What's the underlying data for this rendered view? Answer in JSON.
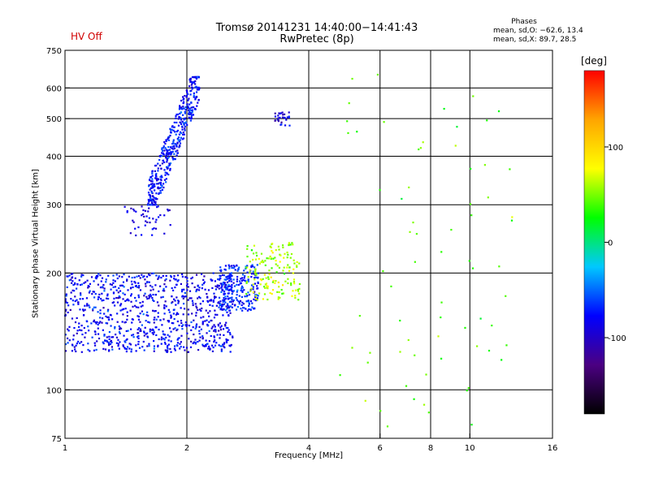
{
  "status_text": "HV Off",
  "chart_data": {
    "type": "scatter",
    "title": "Tromsø 20141231 14:40:00−14:41:43",
    "subtitle": "RwPretec (8p)",
    "xlabel": "Frequency [MHz]",
    "ylabel": "Stationary phase Virtual Height [km]",
    "x_scale": "log",
    "y_scale": "log",
    "xlim": [
      1,
      16
    ],
    "ylim": [
      75,
      750
    ],
    "x_ticks": [
      1,
      2,
      4,
      6,
      8,
      10,
      16
    ],
    "y_ticks": [
      75,
      100,
      200,
      300,
      400,
      500,
      600,
      750
    ],
    "x_gridlines": [
      2,
      4,
      6,
      8,
      10
    ],
    "y_gridlines": [
      100,
      200,
      300,
      400,
      500,
      600
    ],
    "grid": true,
    "color_quantity": "phase",
    "colorbar": {
      "unit": "[deg]",
      "range": [
        -180,
        180
      ],
      "ticks": [
        100,
        0,
        -100
      ],
      "colormap": [
        "#000000",
        "#4b0082",
        "#0000ff",
        "#00c8ff",
        "#00ff00",
        "#ffff00",
        "#ffa500",
        "#ff0000"
      ]
    },
    "phases_box": {
      "title": "Phases",
      "line_o": "mean, sd,O: −62.6, 13.4",
      "line_x": "mean, sd,X:  89.7, 28.5"
    },
    "series": [
      {
        "region": "low-frequency F-trace",
        "x_range": [
          1.0,
          2.6
        ],
        "y_range": [
          125,
          200
        ],
        "count": 900,
        "phase_mean": -80
      },
      {
        "region": "steep trace near 2 MHz",
        "x_range": [
          1.6,
          2.15
        ],
        "y_range": [
          300,
          640
        ],
        "count": 450,
        "phase_mean": -75
      },
      {
        "region": "short trace near 1.5 MHz",
        "x_range": [
          1.4,
          1.85
        ],
        "y_range": [
          250,
          300
        ],
        "count": 45,
        "phase_mean": -90
      },
      {
        "region": "mid-frequency trace",
        "x_range": [
          2.4,
          3.0
        ],
        "y_range": [
          160,
          210
        ],
        "count": 220,
        "phase_mean": -70
      },
      {
        "region": "X-mode trace",
        "x_range": [
          2.8,
          3.8
        ],
        "y_range": [
          170,
          240
        ],
        "count": 160,
        "phase_mean": 60
      },
      {
        "region": "sparse points near 3.5 MHz",
        "x_range": [
          3.3,
          3.6
        ],
        "y_range": [
          480,
          520
        ],
        "count": 30,
        "phase_mean": -90
      },
      {
        "region": "sparse points above 4 MHz",
        "x_range": [
          4.5,
          13
        ],
        "y_range": [
          80,
          650
        ],
        "count": 70,
        "phase_mean": 40
      }
    ]
  }
}
